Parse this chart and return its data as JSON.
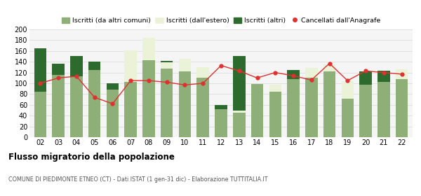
{
  "years": [
    "02",
    "03",
    "04",
    "05",
    "06",
    "07",
    "08",
    "09",
    "10",
    "11",
    "12",
    "13",
    "14",
    "15",
    "16",
    "17",
    "18",
    "19",
    "20",
    "21",
    "22"
  ],
  "iscritti_comuni": [
    85,
    115,
    113,
    125,
    88,
    103,
    143,
    127,
    122,
    110,
    52,
    45,
    99,
    85,
    108,
    110,
    122,
    72,
    97,
    103,
    108
  ],
  "iscritti_estero": [
    0,
    0,
    0,
    0,
    0,
    58,
    42,
    12,
    23,
    20,
    0,
    5,
    0,
    12,
    0,
    18,
    13,
    32,
    0,
    0,
    18
  ],
  "iscritti_altri": [
    80,
    22,
    38,
    15,
    12,
    0,
    0,
    2,
    0,
    0,
    8,
    100,
    0,
    0,
    17,
    0,
    0,
    0,
    25,
    20,
    0
  ],
  "cancellati": [
    100,
    110,
    113,
    74,
    62,
    105,
    105,
    102,
    97,
    100,
    133,
    123,
    110,
    120,
    114,
    106,
    137,
    105,
    123,
    120,
    117
  ],
  "color_comuni": "#8faf78",
  "color_estero": "#eaf2d7",
  "color_altri": "#2d6a2d",
  "color_cancellati": "#e03030",
  "ylim": [
    0,
    200
  ],
  "yticks": [
    0,
    20,
    40,
    60,
    80,
    100,
    120,
    140,
    160,
    180,
    200
  ],
  "title": "Flusso migratorio della popolazione",
  "subtitle": "COMUNE DI PIEDIMONTE ETNEO (CT) - Dati ISTAT (1 gen-31 dic) - Elaborazione TUTTITALIA.IT",
  "legend_labels": [
    "Iscritti (da altri comuni)",
    "Iscritti (dall'estero)",
    "Iscritti (altri)",
    "Cancellati dall'Anagrafe"
  ]
}
